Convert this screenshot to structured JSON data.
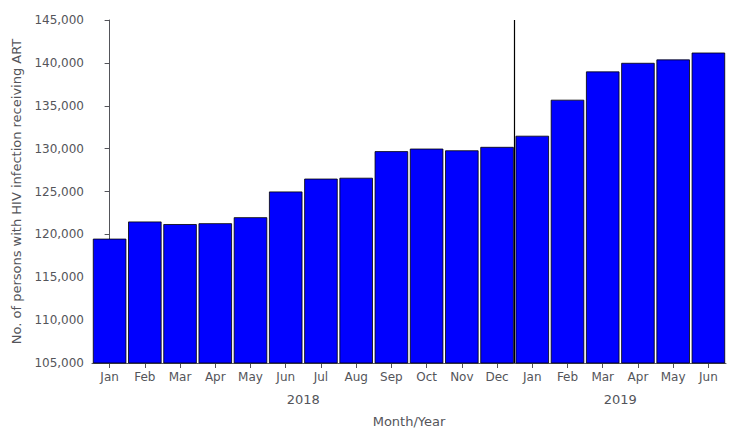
{
  "chart_data": {
    "type": "bar",
    "categories": [
      "Jan",
      "Feb",
      "Mar",
      "Apr",
      "May",
      "Jun",
      "Jul",
      "Aug",
      "Sep",
      "Oct",
      "Nov",
      "Dec",
      "Jan",
      "Feb",
      "Mar",
      "Apr",
      "May",
      "Jun"
    ],
    "values": [
      119500,
      121500,
      121200,
      121300,
      122000,
      125000,
      126500,
      126600,
      129700,
      130000,
      129800,
      130200,
      131500,
      135700,
      139000,
      140000,
      140400,
      141200
    ],
    "color": "#0000FF",
    "ylim": [
      105000,
      145000
    ],
    "yticks": [
      {
        "value": 105000,
        "label": "105,000"
      },
      {
        "value": 110000,
        "label": "110,000"
      },
      {
        "value": 115000,
        "label": "115,000"
      },
      {
        "value": 120000,
        "label": "120,000"
      },
      {
        "value": 125000,
        "label": "125,000"
      },
      {
        "value": 130000,
        "label": "130,000"
      },
      {
        "value": 135000,
        "label": "135,000"
      },
      {
        "value": 140000,
        "label": "140,000"
      },
      {
        "value": 145000,
        "label": "145,000"
      }
    ],
    "xlabel": "Month/Year",
    "ylabel": "No. of persons with HIV infection receiving ART",
    "annotations": [
      {
        "text": "2018",
        "span": [
          0,
          11
        ]
      },
      {
        "text": "2019",
        "span": [
          12,
          17
        ]
      }
    ],
    "grid": false
  }
}
